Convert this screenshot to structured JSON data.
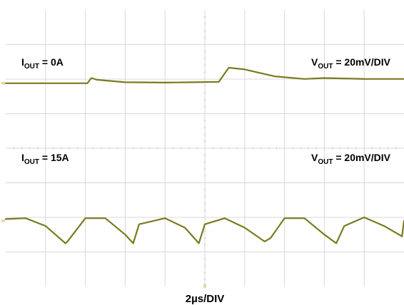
{
  "chart_data": {
    "type": "line",
    "title": "",
    "grid": true,
    "divisions": {
      "x": 10,
      "y": 8
    },
    "timebase": "2µs/DIV",
    "time_per_div_us": 2,
    "trace_color": "#7a7a20",
    "background": "#ffffff",
    "grid_color": "#d8d8d8",
    "panels": [
      {
        "id": "light-load",
        "iout": {
          "main": "I",
          "sub": "OUT",
          "rest": " = 0A"
        },
        "vout": {
          "main": "V",
          "sub": "OUT",
          "rest": " = 20mV/DIV"
        },
        "scale_mv_per_div": 20,
        "zero_level_div_from_top": 2.12,
        "time_us": [
          0,
          4.1,
          4.3,
          4.6,
          6,
          8,
          10.7,
          11.2,
          12,
          13.5,
          15,
          16,
          18,
          20
        ],
        "voltage_mv": [
          0,
          0,
          3,
          2,
          0.6,
          0.4,
          0.8,
          9,
          8,
          4,
          2.5,
          3,
          2.5,
          2.5
        ]
      },
      {
        "id": "heavy-load",
        "iout": {
          "main": "I",
          "sub": "OUT",
          "rest": " = 15A"
        },
        "vout": {
          "main": "V",
          "sub": "OUT",
          "rest": " = 20mV/DIV"
        },
        "scale_mv_per_div": 20,
        "zero_level_div_from_top": 6.1,
        "ripple_period_us": 3.3,
        "time_us": [
          0,
          1,
          2,
          3,
          3.1,
          4,
          5,
          6,
          6.4,
          6.7,
          8,
          9,
          9.7,
          10,
          11,
          12,
          13,
          13.3,
          14,
          15,
          16,
          16.6,
          17,
          18,
          19,
          19.9,
          20
        ],
        "voltage_mv": [
          1,
          1.5,
          -3,
          -13,
          -12,
          1.5,
          1.5,
          -8,
          -13,
          -2,
          1.5,
          -4,
          -13,
          -2,
          1.5,
          -4,
          -12,
          -10,
          1.5,
          1.5,
          -8,
          -13,
          -3,
          2,
          -3,
          -9,
          0
        ]
      }
    ]
  }
}
